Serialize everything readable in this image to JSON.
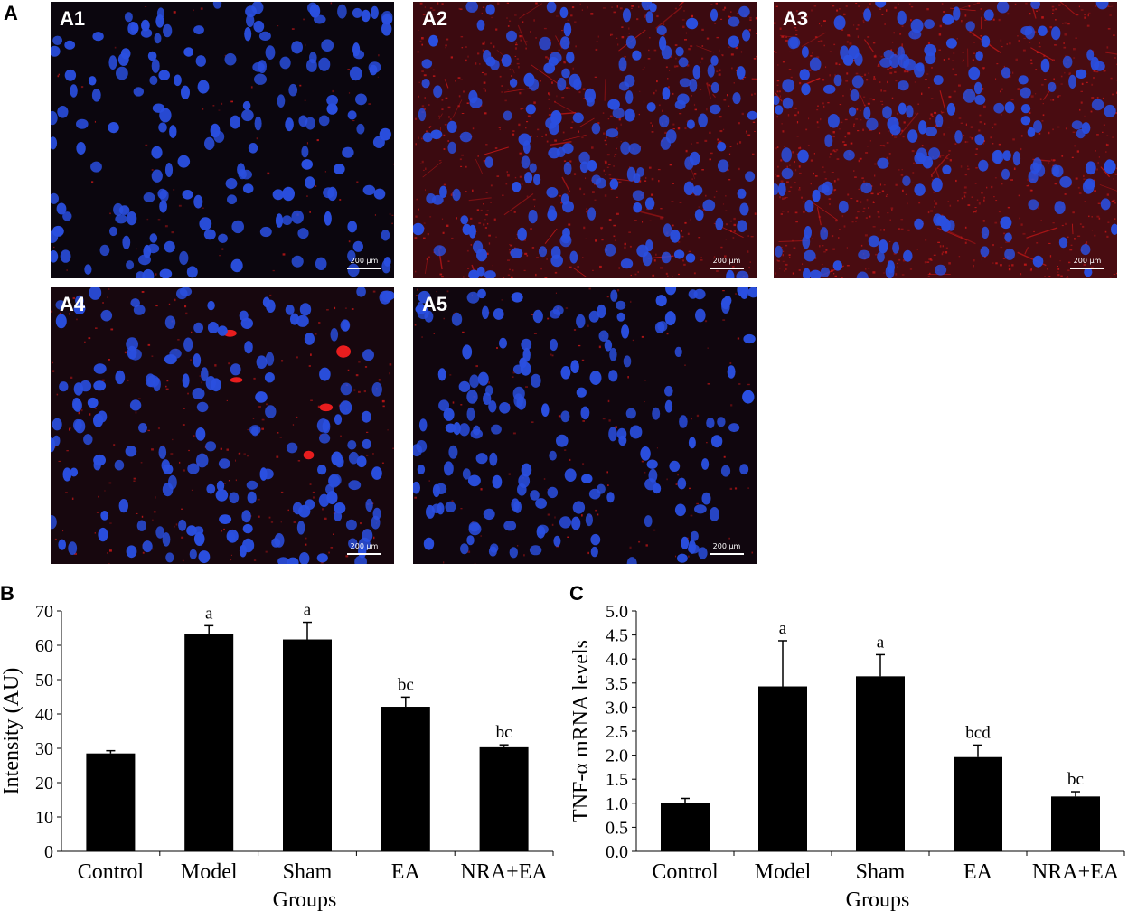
{
  "figure": {
    "panel_a_letter": "A",
    "panel_b_letter": "B",
    "panel_c_letter": "C",
    "colors": {
      "nucleus": "#2a4fe0",
      "stain": "#d01818",
      "background": "#06060e",
      "bar": "#000000"
    }
  },
  "micrographs": [
    {
      "label": "A1",
      "scale": "200 µm",
      "red_level": 0.08,
      "hotspots": 0
    },
    {
      "label": "A2",
      "scale": "200 µm",
      "red_level": 0.75,
      "hotspots": 0
    },
    {
      "label": "A3",
      "scale": "200 µm",
      "red_level": 0.95,
      "hotspots": 0
    },
    {
      "label": "A4",
      "scale": "200 µm",
      "red_level": 0.25,
      "hotspots": 5
    },
    {
      "label": "A5",
      "scale": "200 µm",
      "red_level": 0.15,
      "hotspots": 0
    }
  ],
  "chart_data": [
    {
      "type": "bar",
      "categories": [
        "Control",
        "Model",
        "Sham",
        "EA",
        "NRA+EA"
      ],
      "values": [
        28.5,
        63.2,
        61.7,
        42.1,
        30.3
      ],
      "errors": [
        0.8,
        2.5,
        5.0,
        2.8,
        0.7
      ],
      "annotations": [
        "",
        "a",
        "a",
        "bc",
        "bc"
      ],
      "title": "",
      "xlabel": "Groups",
      "ylabel": "Intensity (AU)",
      "ylim": [
        0,
        70
      ],
      "yticks": [
        "0",
        "10",
        "20",
        "30",
        "40",
        "50",
        "60",
        "70"
      ],
      "grid": false,
      "color": "#000000"
    },
    {
      "type": "bar",
      "categories": [
        "Control",
        "Model",
        "Sham",
        "EA",
        "NRA+EA"
      ],
      "values": [
        1.0,
        3.43,
        3.64,
        1.96,
        1.14
      ],
      "errors": [
        0.1,
        0.95,
        0.45,
        0.25,
        0.1
      ],
      "annotations": [
        "",
        "a",
        "a",
        "bcd",
        "bc"
      ],
      "title": "",
      "xlabel": "Groups",
      "ylabel": "TNF-α mRNA levels",
      "ylim": [
        0,
        5
      ],
      "yticks": [
        "0.0",
        "0.5",
        "1.0",
        "1.5",
        "2.0",
        "2.5",
        "3.0",
        "3.5",
        "4.0",
        "4.5",
        "5.0"
      ],
      "grid": false,
      "color": "#000000"
    }
  ]
}
